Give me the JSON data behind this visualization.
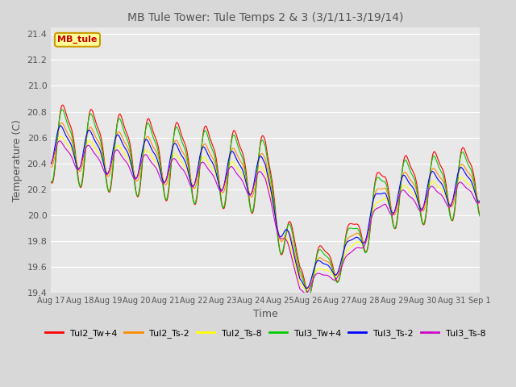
{
  "title": "MB Tule Tower: Tule Temps 2 & 3 (3/1/11-3/19/14)",
  "xlabel": "Time",
  "ylabel": "Temperature (C)",
  "ylim": [
    19.4,
    21.45
  ],
  "yticks": [
    19.4,
    19.6,
    19.8,
    20.0,
    20.2,
    20.4,
    20.6,
    20.8,
    21.0,
    21.2,
    21.4
  ],
  "xtick_labels": [
    "Aug 17",
    "Aug 18",
    "Aug 19",
    "Aug 20",
    "Aug 21",
    "Aug 22",
    "Aug 23",
    "Aug 24",
    "Aug 25",
    "Aug 26",
    "Aug 27",
    "Aug 28",
    "Aug 29",
    "Aug 30",
    "Aug 31",
    "Sep 1"
  ],
  "legend_labels": [
    "Tul2_Tw+4",
    "Tul2_Ts-2",
    "Tul2_Ts-8",
    "Tul3_Tw+4",
    "Tul3_Ts-2",
    "Tul3_Ts-8"
  ],
  "legend_colors": [
    "#ff0000",
    "#ff8c00",
    "#ffff00",
    "#00cc00",
    "#0000ff",
    "#cc00cc"
  ],
  "watermark_text": "MB_tule",
  "watermark_bg": "#ffff99",
  "watermark_border": "#cc9900",
  "background_color": "#d8d8d8",
  "plot_bg": "#e8e8e8",
  "grid_color": "#c0c0c0",
  "n_days": 15,
  "n_points_per_day": 96
}
